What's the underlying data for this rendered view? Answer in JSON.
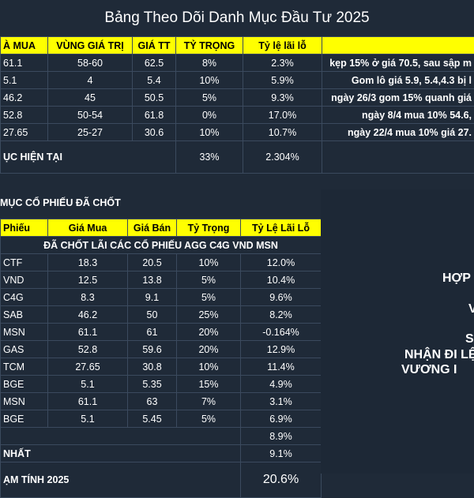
{
  "title": "Bảng Theo Dõi Danh Mục Đầu Tư 2025",
  "top_table": {
    "headers": [
      "À MUA",
      "VÙNG GIÁ TRỊ",
      "GIÁ TT",
      "TỶ TRỌNG",
      "Tỷ lệ lãi lỗ",
      ""
    ],
    "rows": [
      [
        "61.1",
        "58-60",
        "62.5",
        "8%",
        "2.3%",
        "kẹp 15% ở giá 70.5, sau sập m"
      ],
      [
        "5.1",
        "4",
        "5.4",
        "10%",
        "5.9%",
        "Gom lô giá 5.9, 5.4,4.3 bị l"
      ],
      [
        "46.2",
        "45",
        "50.5",
        "5%",
        "9.3%",
        "ngày 26/3 gom 15% quanh giá"
      ],
      [
        "52.8",
        "50-54",
        "61.8",
        "0%",
        "17.0%",
        "ngày 8/4 mua 10% 54.6,"
      ],
      [
        "27.65",
        "25-27",
        "30.6",
        "10%",
        "10.7%",
        "ngày 22/4 mua 10% giá 27."
      ]
    ],
    "summary": {
      "label": "ỤC HIỆN TẠI",
      "weight": "33%",
      "pl": "2.304%"
    }
  },
  "closed_section": {
    "title": "MỤC CỔ PHIẾU ĐÃ CHỐT",
    "headers": [
      "Phiếu",
      "Giá Mua",
      "Giá Bán",
      "Tỷ Trọng",
      "Tỷ Lệ Lãi Lỗ"
    ],
    "banner": "ĐÃ CHỐT LÃI CÁC CỔ PHIẾU AGG C4G VND MSN",
    "rows": [
      [
        "CTF",
        "18.3",
        "20.5",
        "10%",
        "12.0%"
      ],
      [
        "VND",
        "12.5",
        "13.8",
        "5%",
        "10.4%"
      ],
      [
        "C4G",
        "8.3",
        "9.1",
        "5%",
        "9.6%"
      ],
      [
        "SAB",
        "46.2",
        "50",
        "25%",
        "8.2%"
      ],
      [
        "MSN",
        "61.1",
        "61",
        "20%",
        "-0.164%"
      ],
      [
        "GAS",
        "52.8",
        "59.6",
        "20%",
        "12.9%"
      ],
      [
        "TCM",
        "27.65",
        "30.8",
        "10%",
        "11.4%"
      ],
      [
        "BGE",
        "5.1",
        "5.35",
        "15%",
        "4.9%"
      ],
      [
        "MSN",
        "61.1",
        "63",
        "7%",
        "3.1%"
      ],
      [
        "BGE",
        "5.1",
        "5.45",
        "5%",
        "6.9%"
      ]
    ],
    "extra_value": "8.9%",
    "best": {
      "label": "NHẤT",
      "value": "9.1%"
    },
    "year": {
      "label": "ẠM TÍNH 2025",
      "value": "20.6%"
    }
  },
  "side_panel": {
    "lines": [
      "HỢP",
      "V",
      "S",
      "NHẬN ĐI LỆ",
      "VƯƠNG I"
    ]
  },
  "colors": {
    "background": "#1f2a38",
    "header": "#ffff00",
    "gain": "#38d24c",
    "loss": "#ff2020",
    "grid": "#3b4a5e"
  }
}
